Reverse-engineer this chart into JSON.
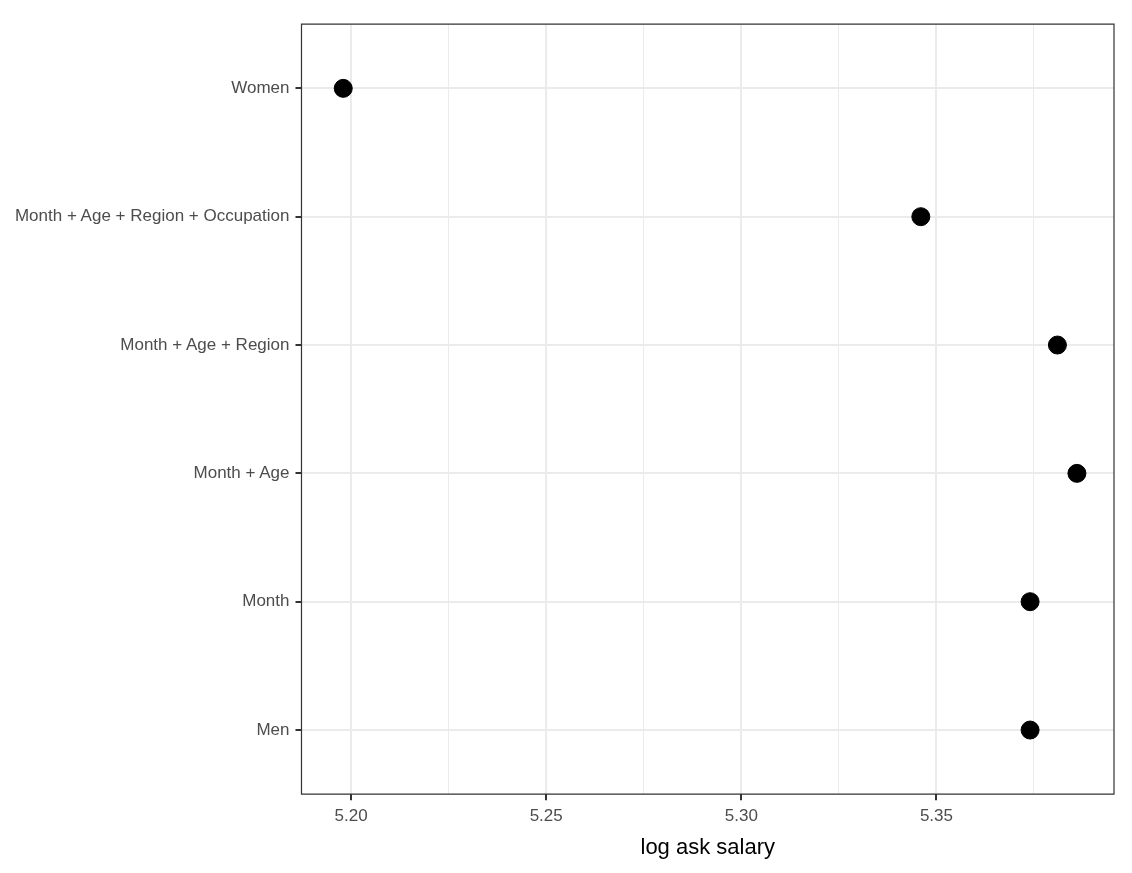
{
  "chart_data": {
    "type": "scatter",
    "orientation": "horizontal",
    "xlabel": "log ask salary",
    "categories": [
      "Women",
      "Month + Age + Region + Occupation",
      "Month + Age + Region",
      "Month + Age",
      "Month",
      "Men"
    ],
    "values": [
      5.198,
      5.346,
      5.381,
      5.386,
      5.374,
      5.374
    ],
    "color": "#000000",
    "marker": "circle",
    "grid": true,
    "legend": false,
    "xlim": [
      5.1873,
      5.3955
    ],
    "xticks": [
      {
        "value": 5.2,
        "label": "5.20"
      },
      {
        "value": 5.225,
        "label": null
      },
      5.25,
      {
        "value": 5.275,
        "label": null
      },
      {
        "value": 5.3,
        "label": "5.30"
      },
      {
        "value": 5.325,
        "label": null
      },
      5.35,
      {
        "value": 5.375,
        "label": null
      }
    ]
  }
}
